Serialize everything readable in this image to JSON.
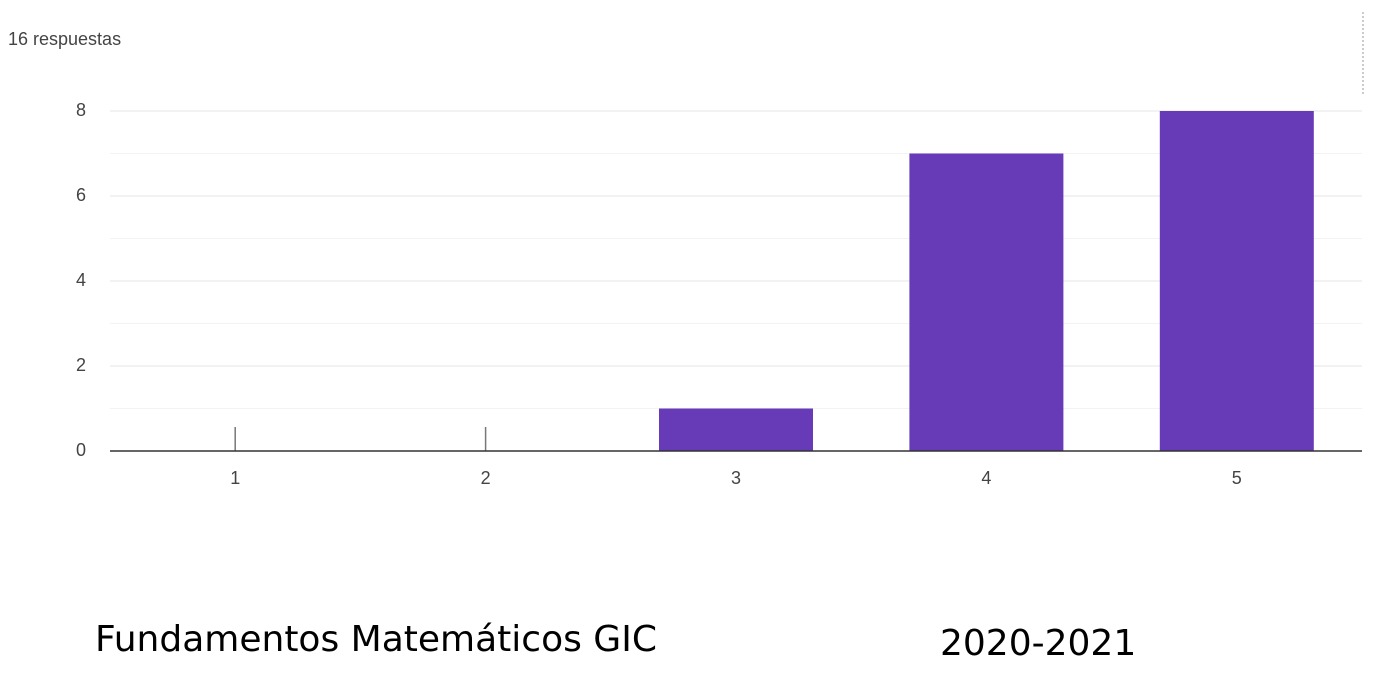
{
  "chart_data": {
    "type": "bar",
    "subtitle": "16 respuestas",
    "categories": [
      "1",
      "2",
      "3",
      "4",
      "5"
    ],
    "values": [
      0,
      0,
      1,
      7,
      8
    ],
    "color": "#673ab7",
    "ylim": [
      0,
      8
    ],
    "yticks": [
      0,
      2,
      4,
      6,
      8
    ],
    "grid": true
  },
  "footer": {
    "course": "Fundamentos Matemáticos GIC",
    "year": "2020-2021"
  }
}
